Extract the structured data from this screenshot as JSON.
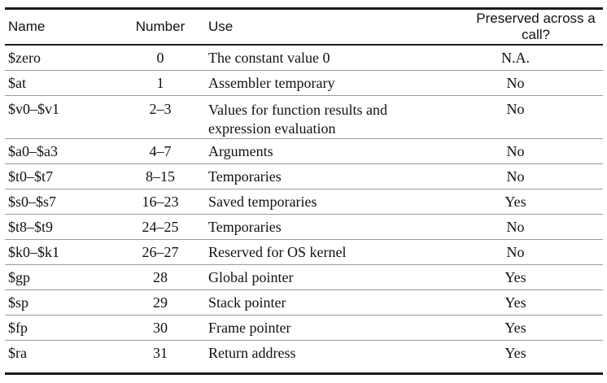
{
  "table": {
    "headers": {
      "name": "Name",
      "number": "Number",
      "use": "Use",
      "preserved": "Preserved across a call?"
    },
    "rows": [
      {
        "name": "$zero",
        "number": "0",
        "use": "The constant value 0",
        "preserved": "N.A."
      },
      {
        "name": "$at",
        "number": "1",
        "use": "Assembler temporary",
        "preserved": "No"
      },
      {
        "name": "$v0–$v1",
        "number": "2–3",
        "use": "Values for function results and expression evaluation",
        "preserved": "No"
      },
      {
        "name": "$a0–$a3",
        "number": "4–7",
        "use": "Arguments",
        "preserved": "No"
      },
      {
        "name": "$t0–$t7",
        "number": "8–15",
        "use": "Temporaries",
        "preserved": "No"
      },
      {
        "name": "$s0–$s7",
        "number": "16–23",
        "use": "Saved temporaries",
        "preserved": "Yes"
      },
      {
        "name": "$t8–$t9",
        "number": "24–25",
        "use": "Temporaries",
        "preserved": "No"
      },
      {
        "name": "$k0–$k1",
        "number": "26–27",
        "use": "Reserved for OS kernel",
        "preserved": "No"
      },
      {
        "name": "$gp",
        "number": "28",
        "use": "Global pointer",
        "preserved": "Yes"
      },
      {
        "name": "$sp",
        "number": "29",
        "use": "Stack pointer",
        "preserved": "Yes"
      },
      {
        "name": "$fp",
        "number": "30",
        "use": "Frame pointer",
        "preserved": "Yes"
      },
      {
        "name": "$ra",
        "number": "31",
        "use": "Return address",
        "preserved": "Yes"
      }
    ]
  }
}
